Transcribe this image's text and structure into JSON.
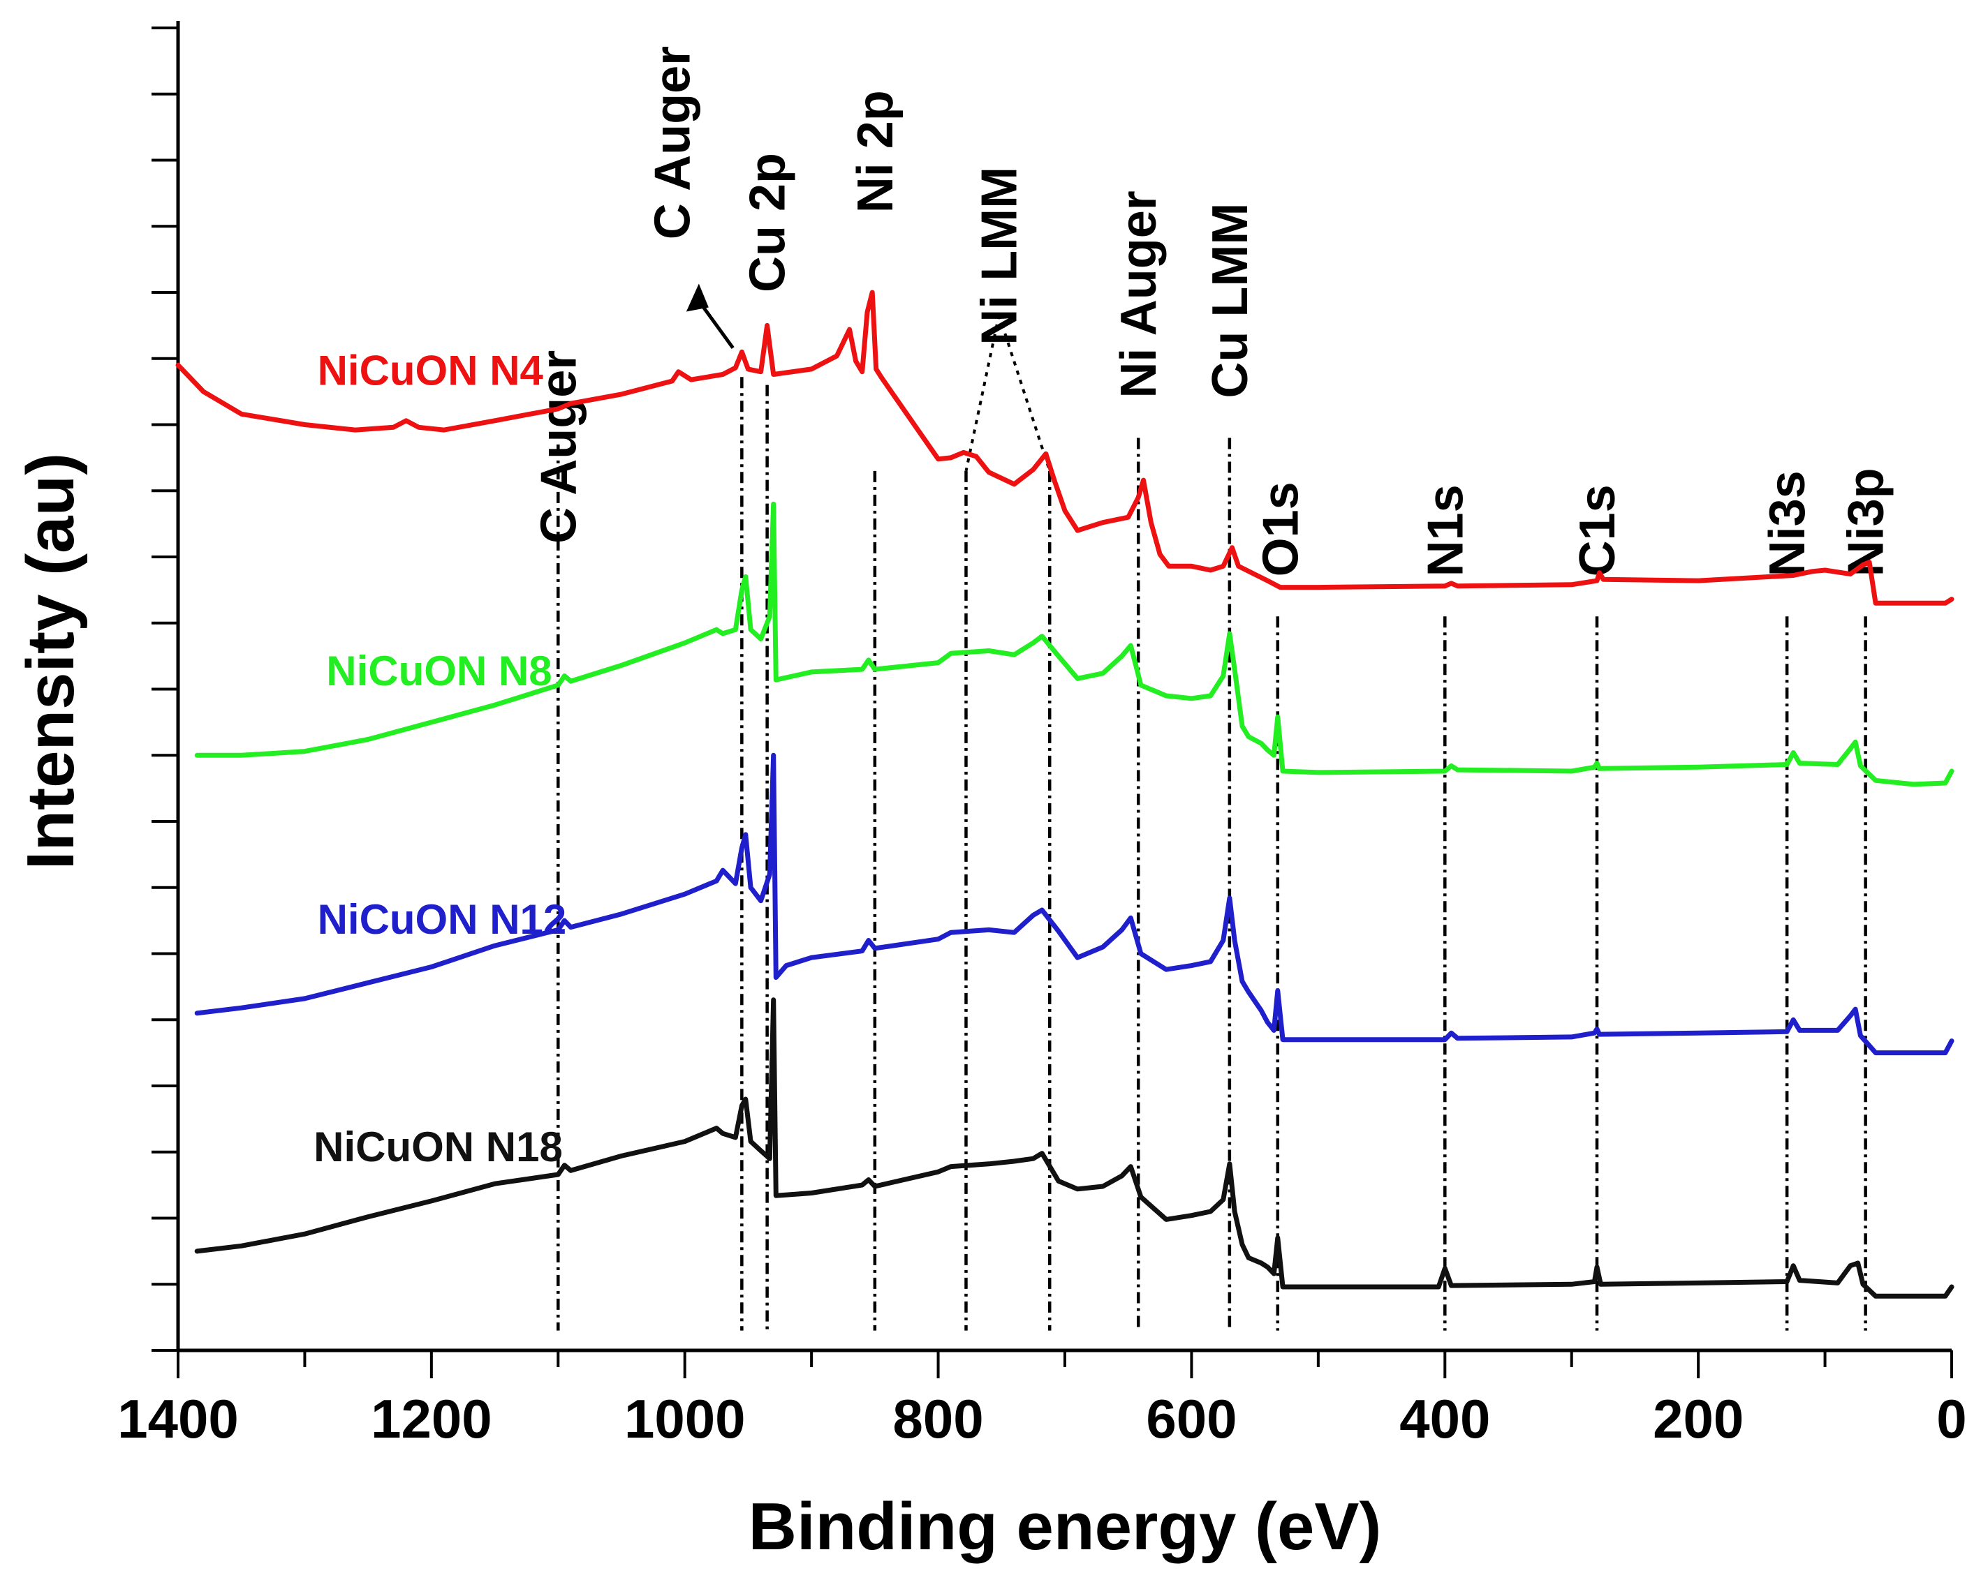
{
  "chart_data": {
    "type": "line",
    "title": "",
    "xlabel": "Binding energy (eV)",
    "ylabel": "Intensity (au)",
    "xlim": [
      1400,
      0
    ],
    "x_reversed": true,
    "xticks": [
      1400,
      1200,
      1000,
      800,
      600,
      400,
      200,
      0
    ],
    "xtick_labels": [
      "1400",
      "1200",
      "1000",
      "800",
      "600",
      "400",
      "200",
      "0"
    ],
    "ylim": [
      0,
      100
    ],
    "yticks_labeled": false,
    "grid": false,
    "legend": "inline labels at left of each curve",
    "series": [
      {
        "name": "NiCuON N4",
        "color": "#ee1111",
        "offset": 75,
        "points": [
          [
            1400,
            74.5
          ],
          [
            1380,
            72.5
          ],
          [
            1350,
            70.8
          ],
          [
            1300,
            70.0
          ],
          [
            1260,
            69.6
          ],
          [
            1230,
            69.8
          ],
          [
            1220,
            70.3
          ],
          [
            1210,
            69.8
          ],
          [
            1190,
            69.6
          ],
          [
            1150,
            70.3
          ],
          [
            1100,
            71.2
          ],
          [
            1090,
            71.6
          ],
          [
            1050,
            72.3
          ],
          [
            1010,
            73.3
          ],
          [
            1005,
            74.0
          ],
          [
            995,
            73.4
          ],
          [
            970,
            73.8
          ],
          [
            960,
            74.3
          ],
          [
            955,
            75.5
          ],
          [
            950,
            74.2
          ],
          [
            940,
            74.0
          ],
          [
            935,
            77.5
          ],
          [
            930,
            73.8
          ],
          [
            900,
            74.2
          ],
          [
            880,
            75.2
          ],
          [
            870,
            77.2
          ],
          [
            865,
            74.8
          ],
          [
            860,
            74.0
          ],
          [
            856,
            78.5
          ],
          [
            852,
            80.0
          ],
          [
            849,
            74.2
          ],
          [
            845,
            73.6
          ],
          [
            800,
            67.4
          ],
          [
            790,
            67.5
          ],
          [
            780,
            67.9
          ],
          [
            770,
            67.6
          ],
          [
            760,
            66.4
          ],
          [
            740,
            65.5
          ],
          [
            725,
            66.6
          ],
          [
            715,
            67.8
          ],
          [
            708,
            65.7
          ],
          [
            700,
            63.5
          ],
          [
            690,
            62.0
          ],
          [
            670,
            62.6
          ],
          [
            650,
            63.0
          ],
          [
            642,
            64.5
          ],
          [
            638,
            65.8
          ],
          [
            632,
            62.6
          ],
          [
            625,
            60.2
          ],
          [
            618,
            59.3
          ],
          [
            600,
            59.3
          ],
          [
            585,
            59.0
          ],
          [
            575,
            59.3
          ],
          [
            568,
            60.7
          ],
          [
            563,
            59.3
          ],
          [
            540,
            58.2
          ],
          [
            530,
            57.7
          ],
          [
            500,
            57.7
          ],
          [
            400,
            57.8
          ],
          [
            395,
            58.0
          ],
          [
            390,
            57.8
          ],
          [
            300,
            57.9
          ],
          [
            280,
            58.2
          ],
          [
            278,
            58.8
          ],
          [
            275,
            58.3
          ],
          [
            200,
            58.2
          ],
          [
            125,
            58.6
          ],
          [
            110,
            58.9
          ],
          [
            100,
            59.0
          ],
          [
            80,
            58.7
          ],
          [
            70,
            59.4
          ],
          [
            65,
            59.6
          ],
          [
            60,
            56.5
          ],
          [
            40,
            56.5
          ],
          [
            5,
            56.5
          ],
          [
            0,
            56.8
          ]
        ]
      },
      {
        "name": "NiCuON N8",
        "color": "#22ee22",
        "offset": 50,
        "points": [
          [
            1385,
            45.0
          ],
          [
            1350,
            45.0
          ],
          [
            1300,
            45.3
          ],
          [
            1250,
            46.2
          ],
          [
            1200,
            47.5
          ],
          [
            1150,
            48.8
          ],
          [
            1100,
            50.3
          ],
          [
            1095,
            51.0
          ],
          [
            1090,
            50.6
          ],
          [
            1050,
            51.8
          ],
          [
            1000,
            53.5
          ],
          [
            975,
            54.5
          ],
          [
            970,
            54.2
          ],
          [
            960,
            54.5
          ],
          [
            955,
            57.5
          ],
          [
            952,
            58.5
          ],
          [
            948,
            54.5
          ],
          [
            940,
            53.8
          ],
          [
            933,
            55.5
          ],
          [
            930,
            64.0
          ],
          [
            928,
            50.7
          ],
          [
            900,
            51.3
          ],
          [
            860,
            51.5
          ],
          [
            855,
            52.2
          ],
          [
            850,
            51.5
          ],
          [
            800,
            52.0
          ],
          [
            790,
            52.7
          ],
          [
            760,
            52.9
          ],
          [
            740,
            52.6
          ],
          [
            725,
            53.5
          ],
          [
            718,
            54.0
          ],
          [
            705,
            52.5
          ],
          [
            690,
            50.8
          ],
          [
            670,
            51.2
          ],
          [
            655,
            52.5
          ],
          [
            648,
            53.3
          ],
          [
            640,
            50.3
          ],
          [
            620,
            49.5
          ],
          [
            600,
            49.3
          ],
          [
            585,
            49.5
          ],
          [
            575,
            51.0
          ],
          [
            570,
            54.2
          ],
          [
            566,
            51.5
          ],
          [
            560,
            47.2
          ],
          [
            555,
            46.4
          ],
          [
            545,
            45.9
          ],
          [
            540,
            45.4
          ],
          [
            535,
            45.0
          ],
          [
            532,
            47.9
          ],
          [
            528,
            43.8
          ],
          [
            500,
            43.7
          ],
          [
            400,
            43.8
          ],
          [
            395,
            44.2
          ],
          [
            390,
            43.9
          ],
          [
            300,
            43.8
          ],
          [
            282,
            44.1
          ],
          [
            280,
            44.4
          ],
          [
            278,
            44.0
          ],
          [
            200,
            44.1
          ],
          [
            130,
            44.3
          ],
          [
            125,
            45.2
          ],
          [
            120,
            44.4
          ],
          [
            90,
            44.3
          ],
          [
            80,
            45.5
          ],
          [
            76,
            46.0
          ],
          [
            72,
            44.2
          ],
          [
            60,
            43.1
          ],
          [
            30,
            42.8
          ],
          [
            5,
            42.9
          ],
          [
            0,
            43.8
          ]
        ]
      },
      {
        "name": "NiCuON N12",
        "color": "#1f1fcc",
        "offset": 25,
        "points": [
          [
            1385,
            25.5
          ],
          [
            1350,
            25.9
          ],
          [
            1300,
            26.6
          ],
          [
            1250,
            27.8
          ],
          [
            1200,
            29.0
          ],
          [
            1150,
            30.6
          ],
          [
            1100,
            31.8
          ],
          [
            1095,
            32.5
          ],
          [
            1090,
            32.0
          ],
          [
            1050,
            33.0
          ],
          [
            1000,
            34.5
          ],
          [
            975,
            35.5
          ],
          [
            970,
            36.3
          ],
          [
            960,
            35.3
          ],
          [
            955,
            38.0
          ],
          [
            952,
            39.0
          ],
          [
            948,
            35.0
          ],
          [
            940,
            34.0
          ],
          [
            933,
            36.0
          ],
          [
            930,
            45.0
          ],
          [
            928,
            28.2
          ],
          [
            920,
            29.1
          ],
          [
            900,
            29.7
          ],
          [
            860,
            30.2
          ],
          [
            855,
            31.0
          ],
          [
            850,
            30.4
          ],
          [
            800,
            31.1
          ],
          [
            790,
            31.6
          ],
          [
            760,
            31.8
          ],
          [
            740,
            31.6
          ],
          [
            725,
            32.9
          ],
          [
            718,
            33.3
          ],
          [
            705,
            31.7
          ],
          [
            690,
            29.7
          ],
          [
            670,
            30.5
          ],
          [
            655,
            31.8
          ],
          [
            648,
            32.7
          ],
          [
            640,
            30.0
          ],
          [
            620,
            28.8
          ],
          [
            600,
            29.1
          ],
          [
            585,
            29.4
          ],
          [
            575,
            31.0
          ],
          [
            570,
            34.2
          ],
          [
            566,
            31.0
          ],
          [
            560,
            27.9
          ],
          [
            555,
            27.1
          ],
          [
            545,
            25.7
          ],
          [
            540,
            24.8
          ],
          [
            535,
            24.2
          ],
          [
            532,
            27.2
          ],
          [
            528,
            23.5
          ],
          [
            500,
            23.5
          ],
          [
            400,
            23.5
          ],
          [
            395,
            24.0
          ],
          [
            390,
            23.6
          ],
          [
            300,
            23.7
          ],
          [
            282,
            24.0
          ],
          [
            280,
            24.3
          ],
          [
            278,
            23.9
          ],
          [
            200,
            24.0
          ],
          [
            130,
            24.1
          ],
          [
            125,
            25.0
          ],
          [
            120,
            24.2
          ],
          [
            90,
            24.2
          ],
          [
            80,
            25.3
          ],
          [
            76,
            25.8
          ],
          [
            72,
            23.8
          ],
          [
            60,
            22.5
          ],
          [
            30,
            22.5
          ],
          [
            5,
            22.5
          ],
          [
            0,
            23.4
          ]
        ]
      },
      {
        "name": "NiCuON N18",
        "color": "#111111",
        "offset": 0,
        "points": [
          [
            1385,
            7.5
          ],
          [
            1350,
            7.9
          ],
          [
            1300,
            8.8
          ],
          [
            1250,
            10.1
          ],
          [
            1200,
            11.3
          ],
          [
            1150,
            12.6
          ],
          [
            1100,
            13.3
          ],
          [
            1095,
            14.0
          ],
          [
            1090,
            13.6
          ],
          [
            1050,
            14.7
          ],
          [
            1000,
            15.8
          ],
          [
            975,
            16.8
          ],
          [
            970,
            16.4
          ],
          [
            960,
            16.1
          ],
          [
            955,
            18.5
          ],
          [
            952,
            19.0
          ],
          [
            948,
            15.8
          ],
          [
            940,
            15.1
          ],
          [
            933,
            14.5
          ],
          [
            930,
            26.5
          ],
          [
            928,
            11.7
          ],
          [
            900,
            11.9
          ],
          [
            860,
            12.5
          ],
          [
            855,
            12.9
          ],
          [
            850,
            12.4
          ],
          [
            800,
            13.5
          ],
          [
            790,
            13.9
          ],
          [
            760,
            14.1
          ],
          [
            740,
            14.3
          ],
          [
            725,
            14.5
          ],
          [
            718,
            14.9
          ],
          [
            705,
            12.8
          ],
          [
            690,
            12.2
          ],
          [
            670,
            12.4
          ],
          [
            655,
            13.2
          ],
          [
            648,
            13.9
          ],
          [
            640,
            11.6
          ],
          [
            620,
            9.9
          ],
          [
            600,
            10.2
          ],
          [
            585,
            10.5
          ],
          [
            575,
            11.4
          ],
          [
            570,
            14.1
          ],
          [
            566,
            10.5
          ],
          [
            560,
            8.0
          ],
          [
            555,
            7.0
          ],
          [
            545,
            6.6
          ],
          [
            540,
            6.3
          ],
          [
            535,
            5.8
          ],
          [
            532,
            8.5
          ],
          [
            528,
            4.8
          ],
          [
            500,
            4.8
          ],
          [
            405,
            4.8
          ],
          [
            400,
            6.2
          ],
          [
            395,
            4.9
          ],
          [
            300,
            5.0
          ],
          [
            282,
            5.2
          ],
          [
            280,
            6.3
          ],
          [
            277,
            5.0
          ],
          [
            200,
            5.1
          ],
          [
            130,
            5.2
          ],
          [
            125,
            6.4
          ],
          [
            120,
            5.3
          ],
          [
            90,
            5.1
          ],
          [
            80,
            6.4
          ],
          [
            74,
            6.6
          ],
          [
            70,
            5.0
          ],
          [
            60,
            4.1
          ],
          [
            30,
            4.1
          ],
          [
            5,
            4.1
          ],
          [
            0,
            4.8
          ]
        ]
      }
    ],
    "peak_markers": [
      {
        "label": "C Auger",
        "x": 1100,
        "y_top": 68.5
      },
      {
        "label": "C Auger",
        "x": 955,
        "y_top": 73.6,
        "arrow": true
      },
      {
        "label": "Cu 2p",
        "x": 935,
        "y_top": 73.0
      },
      {
        "label": "Ni 2p",
        "x": 850,
        "y_top": 66.5
      },
      {
        "label": "Ni LMM",
        "x": 778,
        "y_top": 66.5,
        "dotted_to_label": true
      },
      {
        "label": "Ni LMM",
        "x": 712,
        "y_top": 66.5,
        "dotted_to_label": true
      },
      {
        "label": "Ni Auger",
        "x": 642,
        "y_top": 69.0
      },
      {
        "label": "Cu LMM",
        "x": 570,
        "y_top": 69.0
      },
      {
        "label": "O1s",
        "x": 532,
        "y_top": 55.5
      },
      {
        "label": "N1s",
        "x": 400,
        "y_top": 55.5
      },
      {
        "label": "C1s",
        "x": 280,
        "y_top": 55.5
      },
      {
        "label": "Ni3s",
        "x": 130,
        "y_top": 55.5
      },
      {
        "label": "Ni3p",
        "x": 68,
        "y_top": 55.5
      }
    ]
  }
}
